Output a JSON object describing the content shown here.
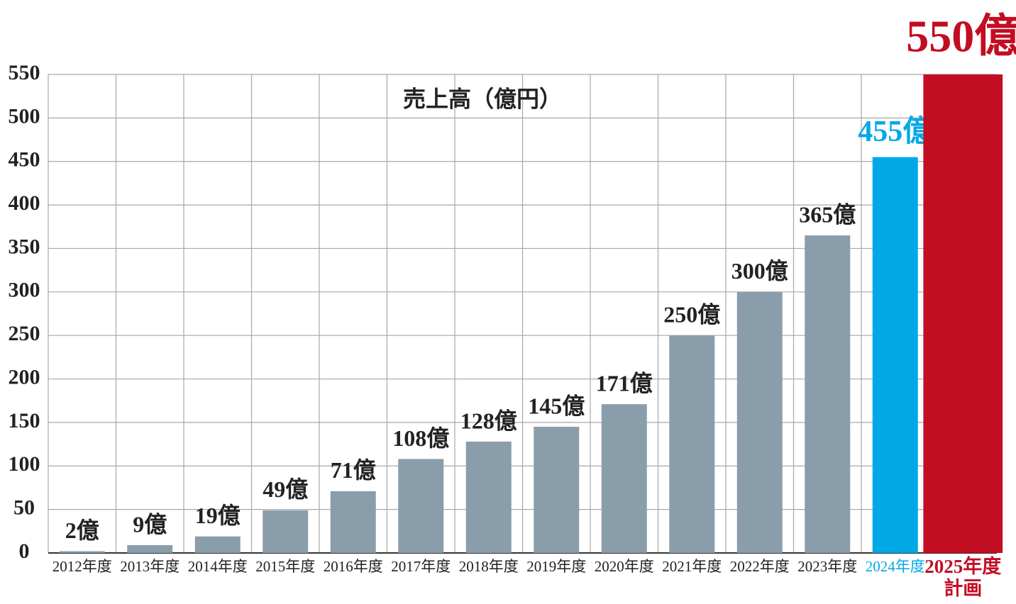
{
  "chart_data": {
    "type": "bar",
    "title": "売上高（億円）",
    "categories": [
      "2012年度",
      "2013年度",
      "2014年度",
      "2015年度",
      "2016年度",
      "2017年度",
      "2018年度",
      "2019年度",
      "2020年度",
      "2021年度",
      "2022年度",
      "2023年度",
      "2024年度",
      "2025年度"
    ],
    "category_note": "計画",
    "values": [
      2,
      9,
      19,
      49,
      71,
      108,
      128,
      145,
      171,
      250,
      300,
      365,
      455,
      550
    ],
    "value_labels": [
      "2億",
      "9億",
      "19億",
      "49億",
      "71億",
      "108億",
      "128億",
      "145億",
      "171億",
      "250億",
      "300億",
      "365億",
      "455億",
      "550億"
    ],
    "colors": [
      "#8a9dab",
      "#8a9dab",
      "#8a9dab",
      "#8a9dab",
      "#8a9dab",
      "#8a9dab",
      "#8a9dab",
      "#8a9dab",
      "#8a9dab",
      "#8a9dab",
      "#8a9dab",
      "#8a9dab",
      "#00a9e6",
      "#c30d23"
    ],
    "ylim": [
      0,
      550
    ],
    "yticks": [
      0,
      50,
      100,
      150,
      200,
      250,
      300,
      350,
      400,
      450,
      500,
      550
    ],
    "grid": true
  }
}
